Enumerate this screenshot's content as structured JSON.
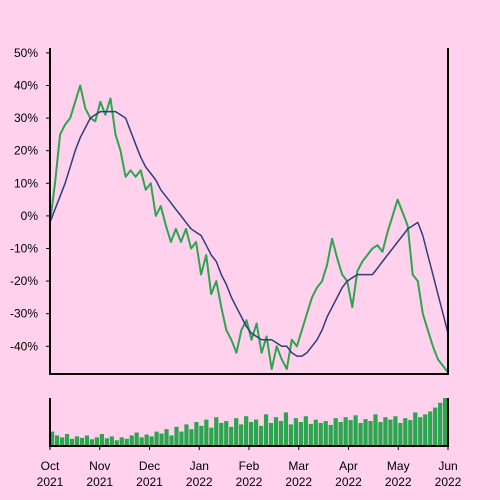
{
  "chart_data": {
    "type": "line",
    "xticks": [
      [
        "Oct",
        "2021"
      ],
      [
        "Nov",
        "2021"
      ],
      [
        "Dec",
        "2021"
      ],
      [
        "Jan",
        "2022"
      ],
      [
        "Feb",
        "2022"
      ],
      [
        "Mar",
        "2022"
      ],
      [
        "Apr",
        "2022"
      ],
      [
        "May",
        "2022"
      ],
      [
        "Jun",
        "2022"
      ]
    ],
    "ylim": [
      -48.5,
      51.5
    ],
    "yticks": [
      {
        "value": 50,
        "label": "50%"
      },
      {
        "value": 40,
        "label": "40%"
      },
      {
        "value": 30,
        "label": "30%"
      },
      {
        "value": 20,
        "label": "20%"
      },
      {
        "value": 10,
        "label": "10%"
      },
      {
        "value": 0,
        "label": "0%"
      },
      {
        "value": -10,
        "label": "-10%"
      },
      {
        "value": -20,
        "label": "-20%"
      },
      {
        "value": -30,
        "label": "-30%"
      },
      {
        "value": -40,
        "label": "-40%"
      }
    ],
    "series": [
      {
        "color": "#2ca54f",
        "values": [
          -2,
          10,
          25,
          28,
          30,
          35,
          40,
          33,
          30,
          29,
          35,
          31,
          36,
          25,
          20,
          12,
          14,
          12,
          14,
          8,
          10,
          0,
          3,
          -3,
          -8,
          -4,
          -8,
          -4,
          -10,
          -8,
          -18,
          -12,
          -24,
          -20,
          -28,
          -35,
          -38,
          -42,
          -35,
          -32,
          -38,
          -33,
          -42,
          -37,
          -47,
          -40,
          -44,
          -47,
          -38,
          -40,
          -35,
          -30,
          -25,
          -22,
          -20,
          -15,
          -7,
          -13,
          -18,
          -20,
          -28,
          -17,
          -14,
          -12,
          -10,
          -9,
          -11,
          -5,
          0,
          5,
          1,
          -3,
          -18,
          -20,
          -30,
          -35,
          -40,
          -44,
          -46,
          -48
        ]
      },
      {
        "color": "#2f3d7a",
        "values": [
          -2,
          2,
          6,
          10,
          15,
          20,
          24,
          27,
          30,
          31,
          32,
          32,
          32,
          32,
          31,
          30,
          26,
          22,
          18,
          15,
          13,
          11,
          8,
          6,
          4,
          2,
          0,
          -2,
          -4,
          -5,
          -6,
          -9,
          -12,
          -14,
          -18,
          -21,
          -25,
          -28,
          -31,
          -34,
          -36,
          -37,
          -38,
          -38,
          -38,
          -39,
          -40,
          -40,
          -42,
          -43,
          -43,
          -42,
          -40,
          -38,
          -35,
          -31,
          -28,
          -25,
          -22,
          -20,
          -19,
          -18,
          -18,
          -18,
          -18,
          -16,
          -14,
          -12,
          -10,
          -8,
          -6,
          -4,
          -3,
          -2,
          -6,
          -12,
          -18,
          -24,
          -30,
          -36
        ]
      }
    ],
    "volume": {
      "color": "#2ca54f",
      "values": [
        30,
        22,
        18,
        25,
        15,
        20,
        17,
        22,
        14,
        18,
        25,
        16,
        20,
        12,
        18,
        15,
        22,
        28,
        18,
        24,
        20,
        30,
        26,
        35,
        22,
        40,
        30,
        45,
        35,
        50,
        42,
        55,
        38,
        60,
        48,
        52,
        40,
        58,
        45,
        62,
        50,
        55,
        42,
        66,
        48,
        60,
        52,
        70,
        45,
        58,
        50,
        62,
        46,
        55,
        48,
        52,
        44,
        58,
        50,
        60,
        54,
        64,
        48,
        56,
        52,
        66,
        50,
        60,
        55,
        62,
        48,
        58,
        54,
        70,
        60,
        66,
        72,
        80,
        90,
        100
      ]
    }
  }
}
